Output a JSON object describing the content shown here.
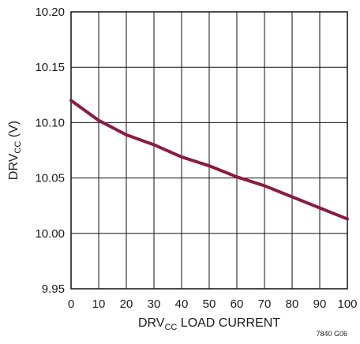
{
  "chart_data": {
    "type": "line",
    "xlabel": {
      "main": "DRV",
      "sub": "CC",
      "rest": " LOAD CURRENT"
    },
    "ylabel": {
      "main": "DRV",
      "sub": "CC",
      "rest": " (V)"
    },
    "xlim": [
      0,
      100
    ],
    "ylim": [
      9.95,
      10.2
    ],
    "x_ticks": [
      "0",
      "10",
      "20",
      "30",
      "40",
      "50",
      "60",
      "70",
      "80",
      "90",
      "100"
    ],
    "y_ticks": [
      "9.95",
      "10.00",
      "10.05",
      "10.10",
      "10.15",
      "10.20"
    ],
    "grid": true,
    "legend": "none",
    "line_color": "#8b1c3c",
    "series": [
      {
        "x": [
          0,
          10,
          20,
          30,
          40,
          50,
          60,
          70,
          80,
          90,
          100
        ],
        "values": [
          10.12,
          10.102,
          10.089,
          10.08,
          10.069,
          10.061,
          10.051,
          10.043,
          10.033,
          10.023,
          10.013
        ]
      }
    ],
    "figure_code": "7840 G06"
  }
}
